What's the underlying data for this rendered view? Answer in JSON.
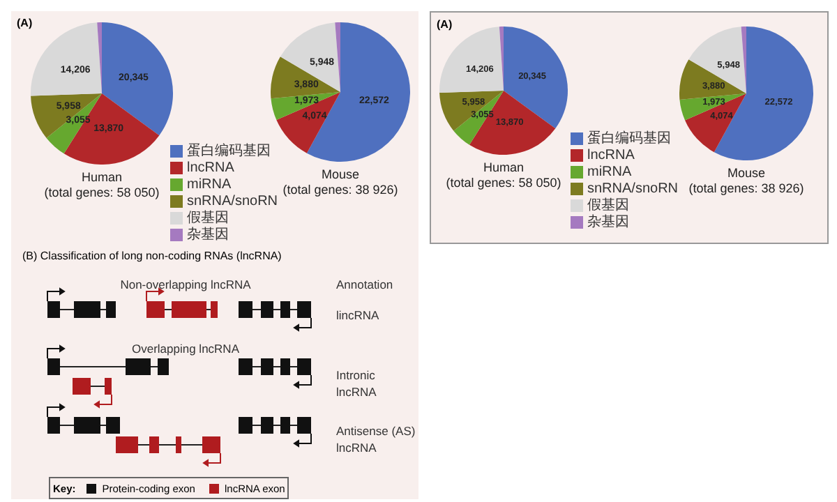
{
  "chart_data": [
    {
      "type": "pie",
      "title": "Human",
      "subtitle": "(total genes: 58 050)",
      "annotations": [
        "(A)"
      ],
      "legend": "right",
      "categories": [
        "蛋白编码基因",
        "lncRNA",
        "miRNA",
        "snRNA/snoRN",
        "假基因",
        "杂基因"
      ],
      "values": [
        20345,
        13870,
        3055,
        5958,
        14206,
        616
      ],
      "value_labels": [
        "20,345",
        "13,870",
        "3,055",
        "5,958",
        "14,206",
        null
      ],
      "colors": [
        "#4f70bf",
        "#b3272a",
        "#66a82f",
        "#7d7b20",
        "#d9d9d9",
        "#a57ac0"
      ]
    },
    {
      "type": "pie",
      "title": "Mouse",
      "subtitle": "(total genes: 38 926)",
      "values": [
        22572,
        4074,
        1973,
        3880,
        5948,
        479
      ],
      "value_labels": [
        "22,572",
        "4,074",
        "1,973",
        "3,880",
        "5,948",
        null
      ],
      "colors": [
        "#4f70bf",
        "#b3272a",
        "#66a82f",
        "#7d7b20",
        "#d9d9d9",
        "#a57ac0"
      ]
    },
    {
      "type": "other",
      "title": "(B) Classification of long non-coding RNAs (lncRNA)",
      "annotations": [
        "Non-overlapping lncRNA",
        "Annotation",
        "lincRNA",
        "Overlapping lncRNA",
        "Intronic lncRNA",
        "Antisense (AS) lncRNA",
        "Key:",
        "Protein-coding exon",
        "lncRNA exon"
      ]
    },
    {
      "type": "pie",
      "title": "Human",
      "subtitle": "(total genes: 58 050)",
      "annotations": [
        "(A)"
      ],
      "legend": "right",
      "categories": [
        "蛋白编码基因",
        "lncRNA",
        "miRNA",
        "snRNA/snoRN",
        "假基因",
        "杂基因"
      ],
      "values": [
        20345,
        13870,
        3055,
        5958,
        14206,
        616
      ],
      "value_labels": [
        "20,345",
        "13,870",
        "3,055",
        "5,958",
        "14,206",
        null
      ],
      "colors": [
        "#4f70bf",
        "#b3272a",
        "#66a82f",
        "#7d7b20",
        "#d9d9d9",
        "#a57ac0"
      ]
    },
    {
      "type": "pie",
      "title": "Mouse",
      "subtitle": "(total genes: 38 926)",
      "values": [
        22572,
        4074,
        1973,
        3880,
        5948,
        479
      ],
      "value_labels": [
        "22,572",
        "4,074",
        "1,973",
        "3,880",
        "5,948",
        null
      ],
      "colors": [
        "#4f70bf",
        "#b3272a",
        "#66a82f",
        "#7d7b20",
        "#d9d9d9",
        "#a57ac0"
      ]
    }
  ]
}
